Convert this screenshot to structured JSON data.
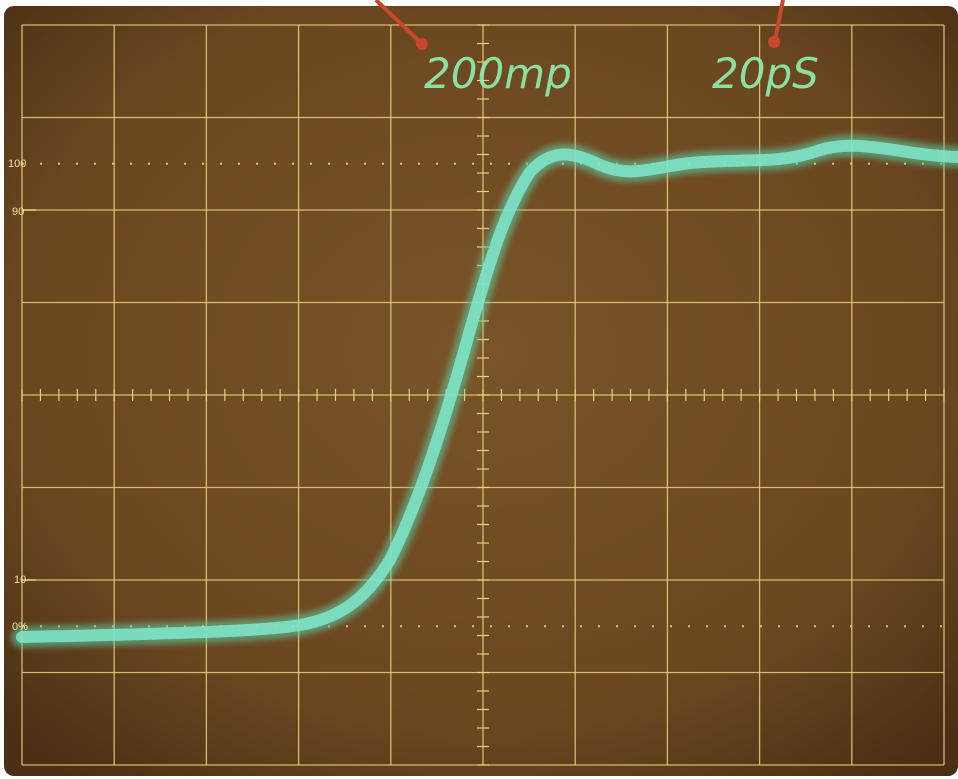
{
  "readouts": {
    "volts_per_div": "200mp",
    "time_per_div": "20pS"
  },
  "graticule_labels": {
    "top_reference": "100",
    "upper_threshold": "90",
    "lower_threshold": "10",
    "bottom_reference": "0%"
  }
}
